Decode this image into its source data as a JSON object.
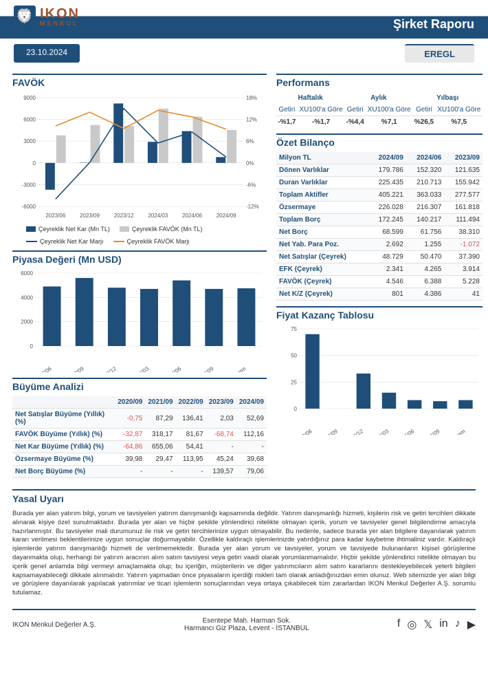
{
  "header": {
    "brand_line1": "IKON",
    "brand_line2": "MENKUL",
    "report_title": "Şirket Raporu",
    "date": "23.10.2024",
    "ticker": "EREGL"
  },
  "colors": {
    "primary": "#1f4e79",
    "accent": "#e28b2d",
    "grid": "#e0e0e0",
    "neg": "#d9534f",
    "bg": "#ffffff",
    "barGrey": "#c9c9c9",
    "lightBlue": "#4a7bb0"
  },
  "favok_chart": {
    "title": "FAVÖK",
    "categories": [
      "2023/06",
      "2023/09",
      "2023/12",
      "2024/03",
      "2024/06",
      "2024/09"
    ],
    "bars_netkar": [
      -3700,
      41,
      8200,
      2900,
      4386,
      801
    ],
    "bars_favok": [
      3800,
      5228,
      5100,
      7500,
      6388,
      4546
    ],
    "line_netkar_marji": [
      -10.0,
      0.1,
      15.0,
      5.5,
      8.5,
      1.6
    ],
    "line_favok_marji": [
      10.2,
      14.0,
      9.5,
      14.5,
      12.7,
      9.3
    ],
    "y_left": {
      "min": -6000,
      "max": 9000,
      "step": 3000
    },
    "y_right": {
      "min": -12,
      "max": 18,
      "step": 6
    },
    "legend": [
      "Çeyreklik Net Kar (Mn TL)",
      "Çeyreklik FAVÖK (Mn TL)",
      "Çeyreklik Net Kar Marjı",
      "Çeyreklik FAVÖK Marjı"
    ],
    "bar_colors": [
      "#1f4e79",
      "#c9c9c9"
    ],
    "line_colors": [
      "#1f4e79",
      "#e28b2d"
    ]
  },
  "piyasa_chart": {
    "title": "Piyasa Değeri (Mn USD)",
    "categories": [
      "2023/06",
      "2023/09",
      "2023/12",
      "2024/03",
      "2024/06",
      "2024/09",
      "Cari Dönem"
    ],
    "values": [
      4900,
      5600,
      4800,
      4700,
      5400,
      4700,
      4750
    ],
    "ylim": [
      0,
      6000
    ],
    "ystep": 2000,
    "bar_color": "#1f4e79"
  },
  "buyume": {
    "title": "Büyüme Analizi",
    "cols": [
      "2020/09",
      "2021/09",
      "2022/09",
      "2023/09",
      "2024/09"
    ],
    "rows": [
      {
        "label": "Net Satışlar Büyüme (Yıllık) (%)",
        "v": [
          "-0,75",
          "87,29",
          "136,41",
          "2,03",
          "52,69"
        ],
        "neg": [
          true,
          false,
          false,
          false,
          false
        ]
      },
      {
        "label": "FAVÖK Büyüme (Yıllık) (%)",
        "v": [
          "-32,87",
          "318,17",
          "81,67",
          "-68,74",
          "112,16"
        ],
        "neg": [
          true,
          false,
          false,
          true,
          false
        ]
      },
      {
        "label": "Net Kar Büyüme (Yıllık) (%)",
        "v": [
          "-64,86",
          "655,06",
          "54,41",
          "-",
          "-"
        ],
        "neg": [
          true,
          false,
          false,
          false,
          false
        ]
      },
      {
        "label": "Özsermaye Büyüme (%)",
        "v": [
          "39,98",
          "29,47",
          "113,95",
          "45,24",
          "39,68"
        ],
        "neg": [
          false,
          false,
          false,
          false,
          false
        ]
      },
      {
        "label": "Net Borç Büyüme (%)",
        "v": [
          "-",
          "-",
          "-",
          "139,57",
          "79,06"
        ],
        "neg": [
          false,
          false,
          false,
          false,
          false
        ]
      }
    ]
  },
  "performans": {
    "title": "Performans",
    "groups": [
      "Haftalık",
      "Aylık",
      "Yılbaşı"
    ],
    "sub": [
      "Getiri",
      "XU100'a Göre"
    ],
    "row": [
      "-%1,7",
      "-%1,7",
      "-%4,4",
      "%7,1",
      "%26,5",
      "%7,5"
    ]
  },
  "bilanco": {
    "title": "Özet Bilanço",
    "header": [
      "Milyon TL",
      "2024/09",
      "2024/06",
      "2023/09"
    ],
    "rows": [
      [
        "Dönen Varlıklar",
        "179.786",
        "152.320",
        "121.635"
      ],
      [
        "Duran Varlıklar",
        "225.435",
        "210.713",
        "155.942"
      ],
      [
        "Toplam Aktifler",
        "405.221",
        "363.033",
        "277.577"
      ],
      [
        "Özsermaye",
        "226.028",
        "216.307",
        "161.818"
      ],
      [
        "Toplam Borç",
        "172.245",
        "140.217",
        "111.494"
      ],
      [
        "Net Borç",
        "68.599",
        "61.756",
        "38.310"
      ],
      [
        "Net Yab. Para Poz.",
        "2.692",
        "1.255",
        "-1.072"
      ],
      [
        "Net Satışlar (Çeyrek)",
        "48.729",
        "50.470",
        "37.390"
      ],
      [
        "EFK (Çeyrek)",
        "2.341",
        "4.265",
        "3.914"
      ],
      [
        "FAVÖK (Çeyrek)",
        "4.546",
        "6.388",
        "5.228"
      ],
      [
        "Net K/Z (Çeyrek)",
        "801",
        "4.386",
        "41"
      ]
    ],
    "neg_cells": [
      [
        6,
        3
      ]
    ]
  },
  "fk_chart": {
    "title": "Fiyat Kazanç Tablosu",
    "categories": [
      "2023/06",
      "2023/09",
      "2023/12",
      "2024/03",
      "2024/06",
      "2024/09",
      "Cari Dönem"
    ],
    "values": [
      70,
      0,
      33,
      15,
      8,
      7,
      8
    ],
    "ylim": [
      0,
      75
    ],
    "ystep": 25,
    "bar_color": "#1f4e79"
  },
  "legal": {
    "title": "Yasal Uyarı",
    "text": "Burada yer alan yatırım bilgi, yorum ve tavsiyeleri yatırım danışmanlığı kapsamında değildir. Yatırım danışmanlığı hizmeti, kişilerin risk ve getiri tercihleri dikkate alınarak kişiye özel sunulmaktadır. Burada yer alan ve hiçbir şekilde yönlendirici nitelikte olmayan içerik, yorum ve tavsiyeler genel bilgilendirme amacıyla hazırlanmıştır. Bu tavsiyeler mali durumunuz ile risk ve getiri tercihlerinize uygun olmayabilir. Bu nedenle, sadece burada yer alan bilgilere dayanılarak yatırım kararı verilmesi beklentilerinize uygun sonuçlar doğurmayabilir. Özellikle kaldıraçlı işlemlerinizde yatırdığınız para kadar kaybetme ihtimaliniz vardır. Kaldıraçlı işlemlerde yatırım danışmanlığı hizmeti de verilmemektedir. Burada yer alan yorum ve tavsiyeler, yorum ve tavsiyede bulunanların kişisel görüşlerine dayanmakta olup, herhangi bir yatırım aracının alım satım tavsiyesi veya getiri vaadi olarak yorumlanmamalıdır. Hiçbir şekilde yönlendirici nitelikte olmayan bu içerik genel anlamda bilgi vermeyi amaçlamakta olup; bu içeriğin, müşterilerin ve diğer yatırımcıların alım satım kararlarını destekleyebilecek yeterli bilgileri kapsamayabileceği dikkate alınmalıdır. Yatırım yapmadan önce piyasaların içerdiği riskleri tam olarak anladığınızdan emin olunuz. Web sitemizde yer alan bilgi ve görüşlere dayanılarak yapılacak yatırımlar ve ticari işlemlerin sonuçlarından veya ortaya çıkabilecek tüm zararlardan IKON Menkul Değerler A.Ş. sorumlu tutulamaz."
  },
  "footer": {
    "company": "IKON Menkul Değerler A.Ş.",
    "address_l1": "Esentepe Mah. Harman Sok.",
    "address_l2": "Harmancı Giz Plaza, Levent - İSTANBUL",
    "social": [
      "facebook",
      "instagram",
      "x",
      "linkedin",
      "tiktok",
      "youtube"
    ]
  }
}
